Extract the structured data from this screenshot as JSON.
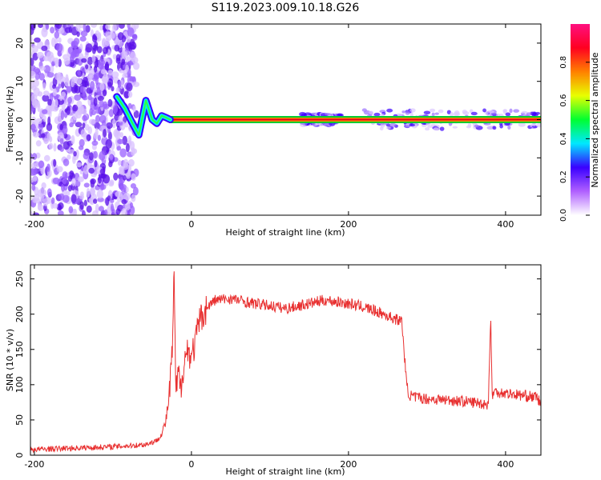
{
  "title": "S119.2023.009.10.18.G26",
  "chart_data": [
    {
      "type": "heatmap",
      "name": "spectrogram",
      "xlabel": "Height of straight line (km)",
      "ylabel": "Frequency (Hz)",
      "xlim": [
        -205,
        445
      ],
      "ylim": [
        -25,
        25
      ],
      "xticks": [
        -200,
        0,
        200,
        400
      ],
      "yticks": [
        -20,
        -10,
        0,
        10,
        20
      ],
      "colorbar": {
        "label": "Normalized spectral amplitude",
        "range": [
          0,
          1
        ],
        "ticks": [
          0.0,
          0.2,
          0.4,
          0.6,
          0.8
        ],
        "colors": [
          "#ffffff",
          "#b060ff",
          "#3a00ff",
          "#00e8ff",
          "#00ff30",
          "#e8ff00",
          "#ff8000",
          "#ff0020",
          "#ff1080"
        ]
      },
      "features": {
        "noise_region_x": [
          -205,
          -70
        ],
        "curve": {
          "x": [
            -95,
            -85,
            -75,
            -67,
            -58,
            -50,
            -44,
            -38,
            -32,
            -27
          ],
          "y": [
            6,
            3,
            -1,
            -4,
            5,
            0,
            -1,
            1,
            0.5,
            0
          ]
        },
        "steady_line_x": [
          -28,
          445
        ],
        "steady_line_y": 0,
        "spread_regions": [
          {
            "x": [
              140,
              190
            ],
            "halfwidth": 1.5
          },
          {
            "x": [
              220,
              445
            ],
            "halfwidth": 2.5
          }
        ]
      }
    },
    {
      "type": "line",
      "name": "snr",
      "xlabel": "Height of straight line (km)",
      "ylabel": "SNR (10 * v/v)",
      "xlim": [
        -205,
        445
      ],
      "ylim": [
        0,
        270
      ],
      "xticks": [
        -200,
        0,
        200,
        400
      ],
      "yticks": [
        0,
        50,
        100,
        150,
        200,
        250
      ],
      "color": "#e83030",
      "series": [
        {
          "x": [
            -205,
            -150,
            -100,
            -60,
            -45,
            -38,
            -33,
            -30,
            -27,
            -24,
            -22,
            -20,
            -17,
            -14,
            -10,
            -5,
            0,
            5,
            10,
            20,
            30,
            50,
            80,
            100,
            120,
            150,
            170,
            200,
            220,
            240,
            255,
            268,
            274,
            276,
            278,
            285,
            300,
            330,
            360,
            378,
            381,
            383,
            386,
            400,
            420,
            440,
            445
          ],
          "y": [
            8,
            10,
            12,
            15,
            20,
            30,
            45,
            70,
            100,
            160,
            265,
            80,
            120,
            90,
            130,
            150,
            140,
            160,
            190,
            210,
            220,
            222,
            215,
            212,
            208,
            215,
            220,
            215,
            210,
            202,
            195,
            190,
            100,
            90,
            85,
            82,
            80,
            78,
            75,
            72,
            195,
            85,
            90,
            88,
            85,
            82,
            72
          ]
        }
      ]
    }
  ]
}
